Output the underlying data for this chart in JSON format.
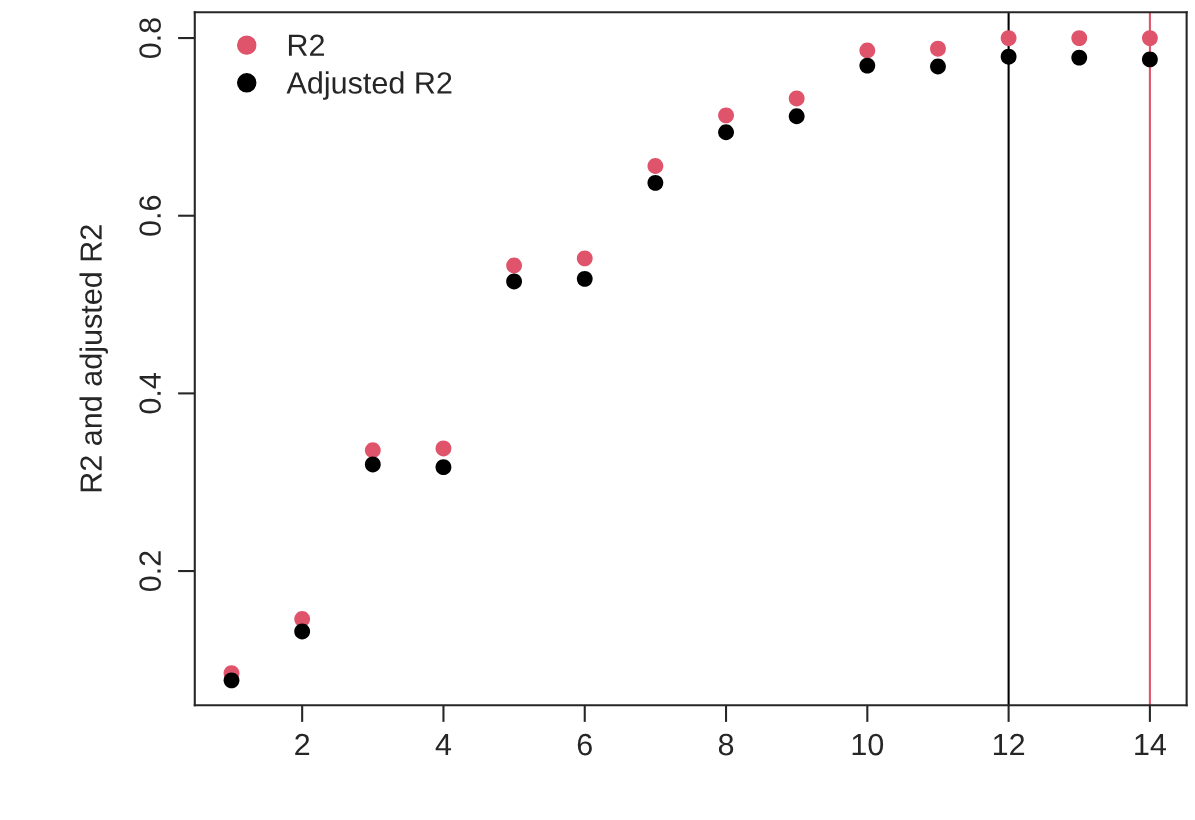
{
  "chart_data": {
    "type": "scatter",
    "ylabel": "R2 and adjusted R2",
    "x": [
      1,
      2,
      3,
      4,
      5,
      6,
      7,
      8,
      9,
      10,
      11,
      12,
      13,
      14
    ],
    "series": [
      {
        "name": "R2",
        "color": "#df536b",
        "values": [
          0.085,
          0.146,
          0.336,
          0.338,
          0.544,
          0.552,
          0.656,
          0.713,
          0.732,
          0.786,
          0.788,
          0.8,
          0.8,
          0.8
        ]
      },
      {
        "name": "Adjusted R2",
        "color": "#000000",
        "values": [
          0.077,
          0.132,
          0.32,
          0.317,
          0.526,
          0.529,
          0.637,
          0.694,
          0.712,
          0.769,
          0.768,
          0.779,
          0.778,
          0.776
        ]
      }
    ],
    "xlim": [
      0.48,
      14.52
    ],
    "ylim": [
      0.049,
      0.829
    ],
    "xticks": [
      2,
      4,
      6,
      8,
      10,
      12,
      14
    ],
    "yticks": [
      0.2,
      0.4,
      0.6,
      0.8
    ],
    "ref_lines": [
      {
        "axis": "x",
        "value": 12,
        "color": "#000000"
      },
      {
        "axis": "x",
        "value": 14,
        "color": "#df536b"
      }
    ],
    "marker": "circle",
    "legend": "top left",
    "grid": false
  }
}
